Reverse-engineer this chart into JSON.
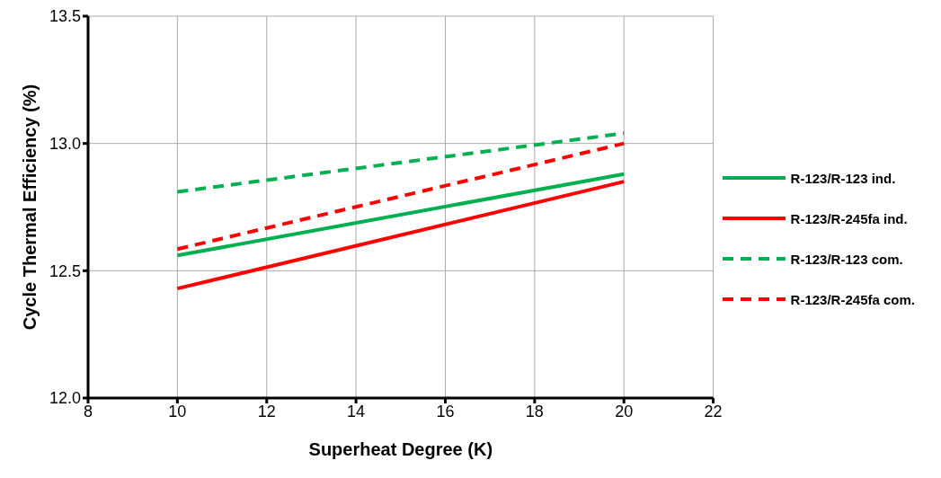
{
  "chart_data": {
    "type": "line",
    "xlabel": "Superheat Degree (K)",
    "ylabel": "Cycle Thermal Efficiency (%)",
    "x": [
      10,
      20
    ],
    "series": [
      {
        "name": "R-123/R-123 ind.",
        "color": "#00b050",
        "values": [
          12.56,
          12.88
        ],
        "line_style": "solid"
      },
      {
        "name": "R-123/R-245fa ind.",
        "color": "#ff0000",
        "values": [
          12.43,
          12.85
        ],
        "line_style": "solid"
      },
      {
        "name": "R-123/R-123 com.",
        "color": "#00b050",
        "values": [
          12.81,
          13.04
        ],
        "line_style": "dashed"
      },
      {
        "name": "R-123/R-245fa com.",
        "color": "#ff0000",
        "values": [
          12.585,
          13.0
        ],
        "line_style": "dashed"
      }
    ],
    "xlim": [
      8,
      22
    ],
    "xticks": [
      8,
      10,
      12,
      14,
      16,
      18,
      20,
      22
    ],
    "ylim": [
      12.0,
      13.5
    ],
    "yticks": [
      {
        "value": 12,
        "label": "12.0"
      },
      12.5,
      {
        "value": 13,
        "label": "13.0"
      },
      13.5
    ],
    "grid": true,
    "legend": "right",
    "marker": "none"
  }
}
